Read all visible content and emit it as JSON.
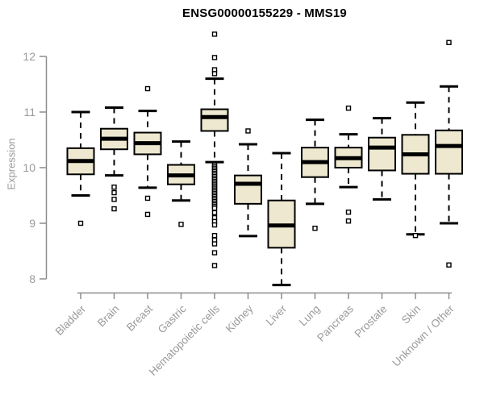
{
  "chart_data": {
    "type": "boxplot",
    "title": "ENSG00000155229 - MMS19",
    "ylabel": "Expression",
    "xlabel": "",
    "ylim": [
      7.8,
      12.5
    ],
    "yticks": [
      8,
      9,
      10,
      11,
      12
    ],
    "grid": false,
    "legend": "none",
    "colors": {
      "box_fill": "#EDE8CF",
      "box_stroke": "#000000",
      "axis": "#8C8C8C",
      "tick_label": "#9A9A9A",
      "title": "#000000"
    },
    "categories": [
      "Bladder",
      "Brain",
      "Breast",
      "Gastric",
      "Hematopoietic cells",
      "Kidney",
      "Liver",
      "Lung",
      "Pancreas",
      "Prostate",
      "Skin",
      "Unknown / Other"
    ],
    "series": [
      {
        "category": "Bladder",
        "low": 9.5,
        "q1": 9.88,
        "median": 10.12,
        "q3": 10.35,
        "high": 11.0,
        "outliers": [
          9.0
        ]
      },
      {
        "category": "Brain",
        "low": 9.86,
        "q1": 10.33,
        "median": 10.52,
        "q3": 10.7,
        "high": 11.08,
        "outliers": [
          9.65,
          9.55,
          9.43,
          9.26
        ]
      },
      {
        "category": "Breast",
        "low": 9.64,
        "q1": 10.24,
        "median": 10.44,
        "q3": 10.63,
        "high": 11.02,
        "outliers": [
          11.42,
          9.45,
          9.16
        ]
      },
      {
        "category": "Gastric",
        "low": 9.41,
        "q1": 9.7,
        "median": 9.86,
        "q3": 10.05,
        "high": 10.47,
        "outliers": [
          8.98
        ]
      },
      {
        "category": "Hematopoietic cells",
        "low": 10.1,
        "q1": 10.66,
        "median": 10.91,
        "q3": 11.05,
        "high": 11.6,
        "outliers": [
          12.4,
          11.98,
          11.76,
          11.69,
          10.05,
          10.02,
          9.99,
          9.96,
          9.93,
          9.9,
          9.87,
          9.84,
          9.81,
          9.78,
          9.75,
          9.72,
          9.69,
          9.66,
          9.63,
          9.6,
          9.57,
          9.54,
          9.51,
          9.48,
          9.45,
          9.42,
          9.39,
          9.36,
          9.33,
          9.3,
          9.27,
          9.19,
          9.1,
          9.03,
          8.97,
          8.78,
          8.7,
          8.63,
          8.47,
          8.24
        ]
      },
      {
        "category": "Kidney",
        "low": 8.77,
        "q1": 9.35,
        "median": 9.71,
        "q3": 9.86,
        "high": 10.42,
        "outliers": [
          10.66
        ]
      },
      {
        "category": "Liver",
        "low": 7.89,
        "q1": 8.56,
        "median": 8.96,
        "q3": 9.41,
        "high": 10.26,
        "outliers": []
      },
      {
        "category": "Lung",
        "low": 9.35,
        "q1": 9.83,
        "median": 10.1,
        "q3": 10.36,
        "high": 10.86,
        "outliers": [
          8.91
        ]
      },
      {
        "category": "Pancreas",
        "low": 9.65,
        "q1": 10.0,
        "median": 10.17,
        "q3": 10.36,
        "high": 10.6,
        "outliers": [
          11.07,
          9.2,
          9.04
        ]
      },
      {
        "category": "Prostate",
        "low": 9.43,
        "q1": 9.95,
        "median": 10.36,
        "q3": 10.54,
        "high": 10.89,
        "outliers": []
      },
      {
        "category": "Skin",
        "low": 8.8,
        "q1": 9.89,
        "median": 10.24,
        "q3": 10.59,
        "high": 11.17,
        "outliers": [
          8.78
        ]
      },
      {
        "category": "Unknown / Other",
        "low": 9.0,
        "q1": 9.89,
        "median": 10.39,
        "q3": 10.67,
        "high": 11.46,
        "outliers": [
          12.25,
          8.25
        ]
      }
    ]
  }
}
